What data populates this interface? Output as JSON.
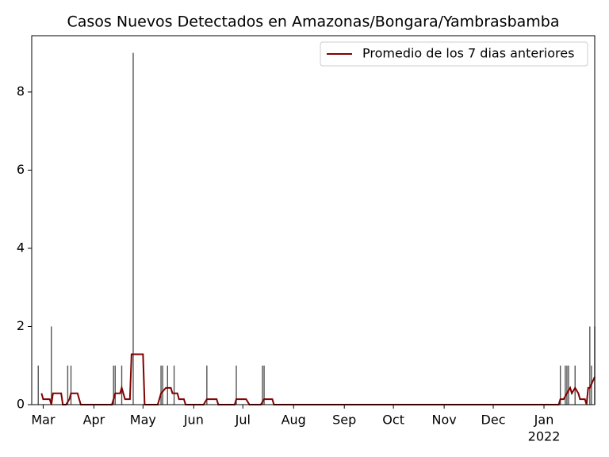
{
  "chart_data": {
    "type": "bar",
    "title": "Casos Nuevos Detectados en Amazonas/Bongara/Yambrasbamba",
    "x": [
      4,
      12,
      22,
      24,
      50,
      51,
      55,
      62,
      79,
      80,
      83,
      87,
      107,
      125,
      141,
      142,
      323,
      326,
      327,
      328,
      332,
      341,
      342,
      344
    ],
    "values": [
      1,
      2,
      1,
      1,
      1,
      1,
      1,
      9,
      1,
      1,
      1,
      1,
      1,
      1,
      1,
      1,
      1,
      1,
      1,
      1,
      1,
      2,
      1,
      2
    ],
    "color": "#555555",
    "series": [
      {
        "name": "Promedio de los 7 dias anteriores",
        "color": "#800000",
        "x": [
          6,
          7,
          11,
          12,
          13,
          18,
          19,
          21,
          23,
          24,
          28,
          29,
          30,
          49,
          50,
          51,
          54,
          55,
          57,
          60,
          61,
          68,
          69,
          77,
          79,
          82,
          85,
          86,
          89,
          90,
          93,
          94,
          105,
          107,
          113,
          114,
          124,
          125,
          131,
          133,
          140,
          142,
          147,
          148,
          322,
          323,
          325,
          327,
          329,
          330,
          332,
          334,
          335,
          338,
          339,
          340,
          341,
          344
        ],
        "values": [
          0.29,
          0.14,
          0.14,
          0,
          0.29,
          0.29,
          0,
          0,
          0.14,
          0.29,
          0.29,
          0.14,
          0,
          0,
          0.14,
          0.29,
          0.29,
          0.43,
          0.14,
          0.14,
          1.29,
          1.29,
          0,
          0,
          0.29,
          0.43,
          0.43,
          0.29,
          0.29,
          0.14,
          0.14,
          0,
          0,
          0.14,
          0.14,
          0,
          0,
          0.14,
          0.14,
          0,
          0,
          0.14,
          0.14,
          0,
          0,
          0.14,
          0.14,
          0.29,
          0.43,
          0.29,
          0.43,
          0.29,
          0.14,
          0.14,
          0,
          0.43,
          0.43,
          0.71
        ]
      }
    ],
    "xlim": [
      0,
      344
    ],
    "xticks": [
      {
        "value": 7,
        "label": "Mar"
      },
      {
        "value": 38,
        "label": "Apr"
      },
      {
        "value": 68,
        "label": "May"
      },
      {
        "value": 99,
        "label": "Jun"
      },
      {
        "value": 129,
        "label": "Jul"
      },
      {
        "value": 160,
        "label": "Aug"
      },
      {
        "value": 191,
        "label": "Sep"
      },
      {
        "value": 221,
        "label": "Oct"
      },
      {
        "value": 252,
        "label": "Nov"
      },
      {
        "value": 282,
        "label": "Dec"
      },
      {
        "value": 313,
        "label": "Jan"
      }
    ],
    "x_year_label": "2022",
    "ylim": [
      0,
      9.44
    ],
    "yticks": [
      0,
      2,
      4,
      6,
      8
    ],
    "legend": "upper right"
  }
}
